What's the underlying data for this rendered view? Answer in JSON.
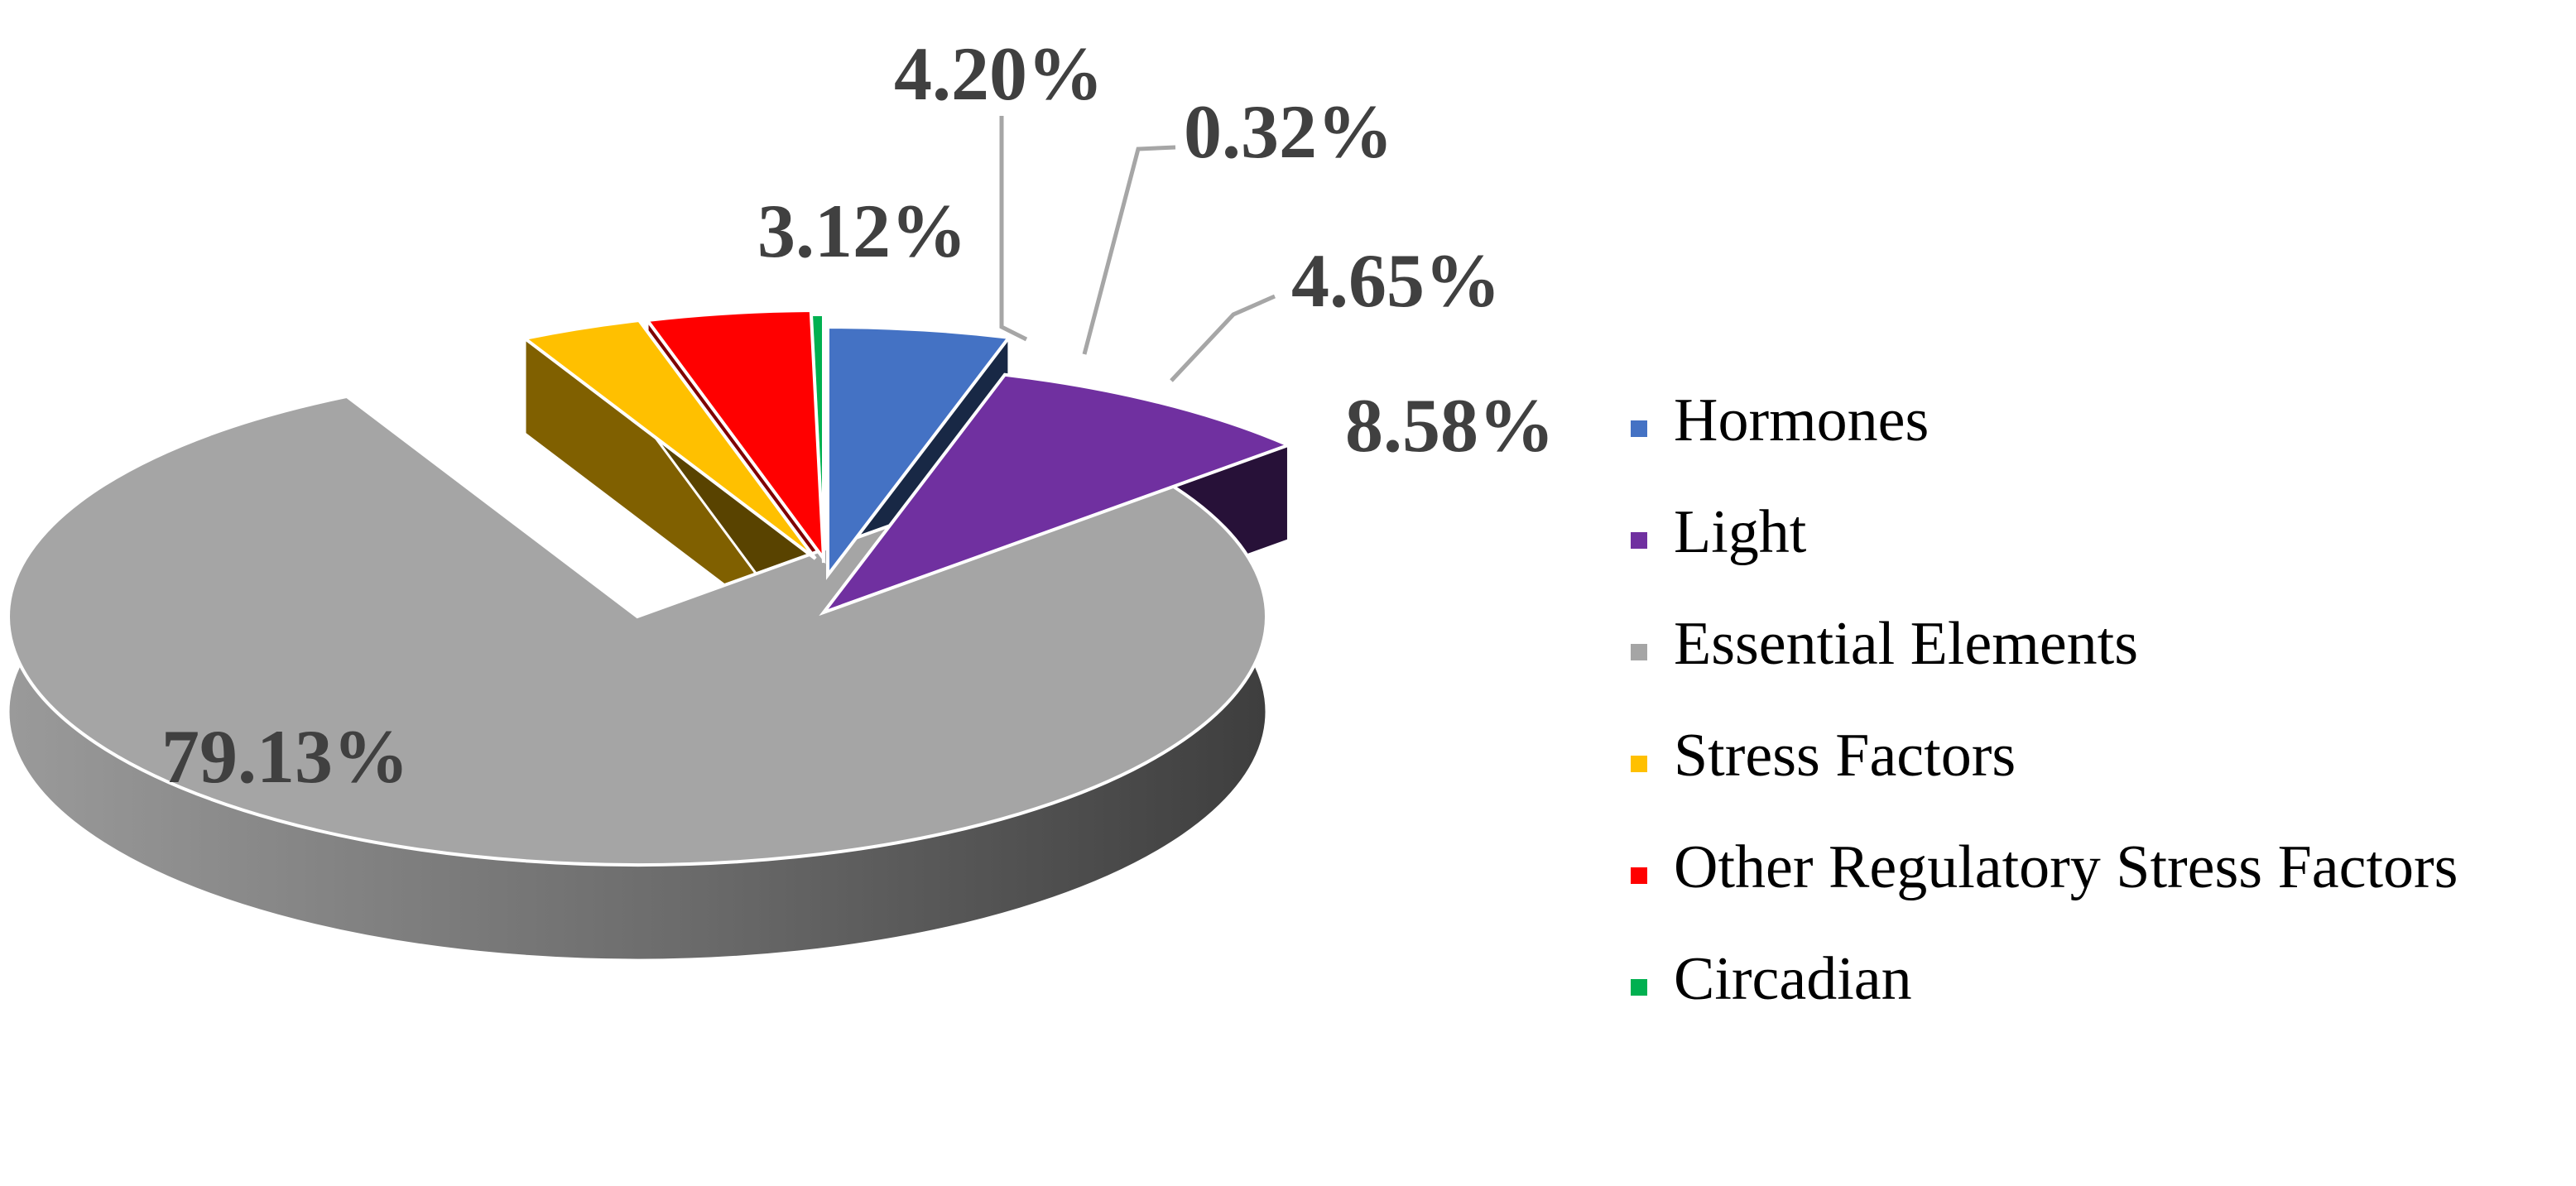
{
  "chart_data": {
    "type": "pie",
    "title": "",
    "style": "3d-exploded",
    "legend_position": "right",
    "series": [
      {
        "slices": [
          {
            "label": "Hormones",
            "value": 4.65,
            "display": "4.65%",
            "color": "#4472C4"
          },
          {
            "label": "Light",
            "value": 8.58,
            "display": "8.58%",
            "color": "#7030A0"
          },
          {
            "label": "Essential Elements",
            "value": 79.13,
            "display": "79.13%",
            "color": "#A5A5A5"
          },
          {
            "label": "Stress Factors",
            "value": 3.12,
            "display": "3.12%",
            "color": "#FFC000"
          },
          {
            "label": "Other Regulatory Stress Factors",
            "value": 4.2,
            "display": "4.20%",
            "color": "#FF0000"
          },
          {
            "label": "Circadian",
            "value": 0.32,
            "display": "0.32%",
            "color": "#00B050"
          }
        ]
      }
    ]
  }
}
